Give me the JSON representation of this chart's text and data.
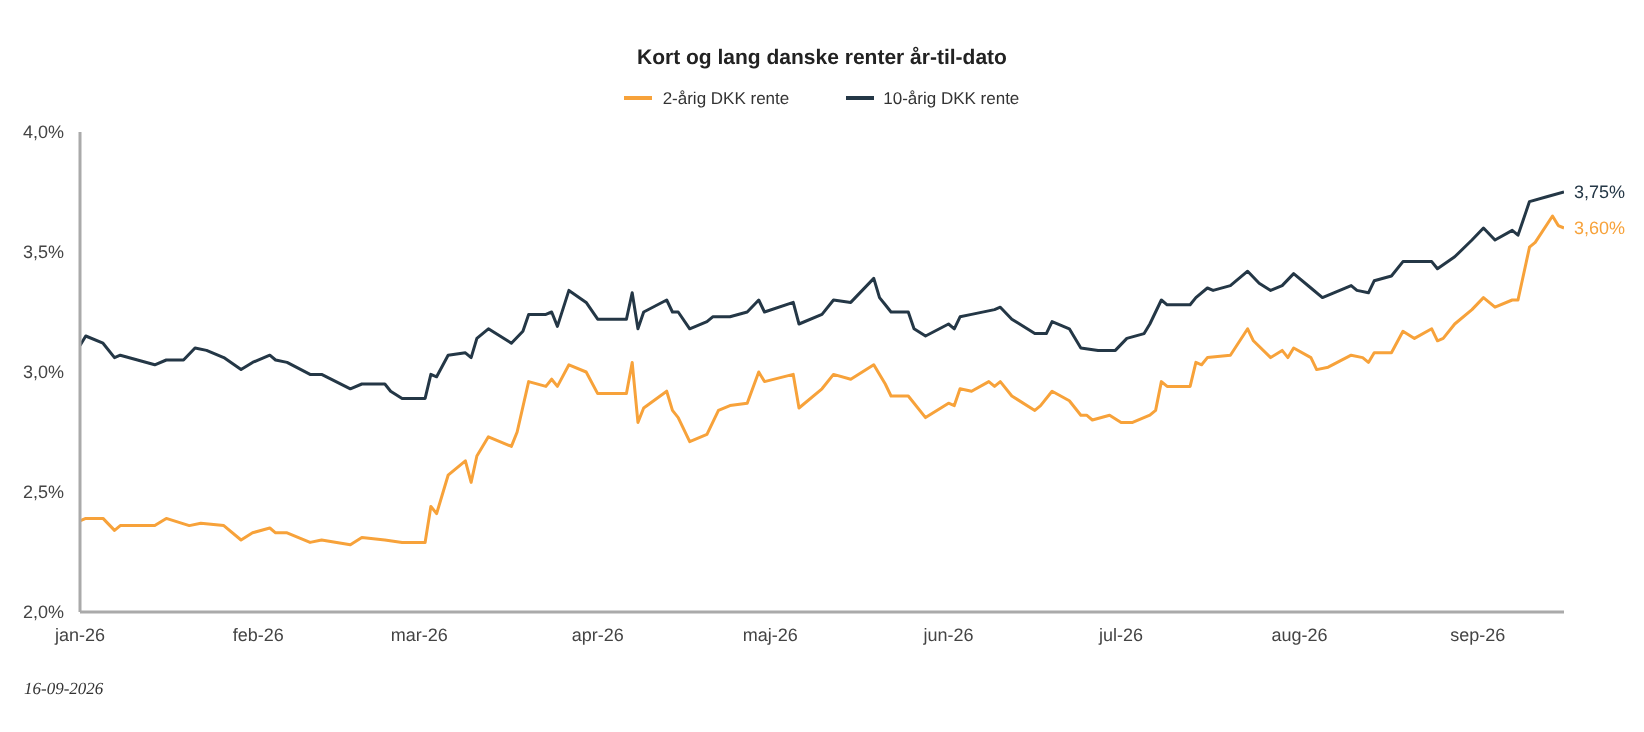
{
  "chart_data": {
    "type": "line",
    "title": "Kort og lang danske renter år-til-dato",
    "annotations": [
      "16-09-2026"
    ],
    "legend": "top",
    "grid": false,
    "marker": "none",
    "line_style": "solid",
    "ylim": [
      2,
      4
    ],
    "yticks": [
      {
        "value": 2,
        "label": "2,0%"
      },
      {
        "value": 2.5,
        "label": "2,5%"
      },
      {
        "value": 3,
        "label": "3,0%"
      },
      {
        "value": 3.5,
        "label": "3,5%"
      },
      {
        "value": 4,
        "label": "4,0%"
      }
    ],
    "xlim": [
      "2026-01-01",
      "2026-09-16"
    ],
    "xticks": [
      {
        "value": "2026-01-01",
        "label": "jan-26"
      },
      {
        "value": "2026-02-01",
        "label": "feb-26"
      },
      {
        "value": "2026-03-01",
        "label": "mar-26"
      },
      {
        "value": "2026-04-01",
        "label": "apr-26"
      },
      {
        "value": "2026-05-01",
        "label": "maj-26"
      },
      {
        "value": "2026-06-01",
        "label": "jun-26"
      },
      {
        "value": "2026-07-01",
        "label": "jul-26"
      },
      {
        "value": "2026-08-01",
        "label": "aug-26"
      },
      {
        "value": "2026-09-01",
        "label": "sep-26"
      }
    ],
    "series": [
      {
        "name": "2-årig DKK rente",
        "color": "#f7a23a",
        "x": [
          "2026-01-01",
          "2026-01-02",
          "2026-01-05",
          "2026-01-07",
          "2026-01-08",
          "2026-01-14",
          "2026-01-16",
          "2026-01-20",
          "2026-01-22",
          "2026-01-26",
          "2026-01-29",
          "2026-01-31",
          "2026-02-03",
          "2026-02-04",
          "2026-02-06",
          "2026-02-10",
          "2026-02-12",
          "2026-02-17",
          "2026-02-19",
          "2026-02-23",
          "2026-02-26",
          "2026-03-02",
          "2026-03-03",
          "2026-03-04",
          "2026-03-06",
          "2026-03-09",
          "2026-03-10",
          "2026-03-11",
          "2026-03-13",
          "2026-03-17",
          "2026-03-18",
          "2026-03-20",
          "2026-03-23",
          "2026-03-24",
          "2026-03-25",
          "2026-03-27",
          "2026-03-30",
          "2026-04-01",
          "2026-04-06",
          "2026-04-07",
          "2026-04-08",
          "2026-04-09",
          "2026-04-13",
          "2026-04-14",
          "2026-04-15",
          "2026-04-17",
          "2026-04-20",
          "2026-04-22",
          "2026-04-24",
          "2026-04-27",
          "2026-04-29",
          "2026-04-30",
          "2026-05-05",
          "2026-05-06",
          "2026-05-10",
          "2026-05-12",
          "2026-05-15",
          "2026-05-19",
          "2026-05-21",
          "2026-05-22",
          "2026-05-25",
          "2026-05-28",
          "2026-06-01",
          "2026-06-02",
          "2026-06-03",
          "2026-06-05",
          "2026-06-08",
          "2026-06-09",
          "2026-06-10",
          "2026-06-12",
          "2026-06-16",
          "2026-06-17",
          "2026-06-19",
          "2026-06-22",
          "2026-06-24",
          "2026-06-25",
          "2026-06-26",
          "2026-06-29",
          "2026-07-01",
          "2026-07-03",
          "2026-07-06",
          "2026-07-07",
          "2026-07-08",
          "2026-07-09",
          "2026-07-13",
          "2026-07-14",
          "2026-07-15",
          "2026-07-16",
          "2026-07-20",
          "2026-07-23",
          "2026-07-24",
          "2026-07-27",
          "2026-07-29",
          "2026-07-30",
          "2026-07-31",
          "2026-08-03",
          "2026-08-04",
          "2026-08-06",
          "2026-08-10",
          "2026-08-12",
          "2026-08-13",
          "2026-08-14",
          "2026-08-17",
          "2026-08-19",
          "2026-08-21",
          "2026-08-24",
          "2026-08-25",
          "2026-08-26",
          "2026-08-28",
          "2026-08-31",
          "2026-09-02",
          "2026-09-04",
          "2026-09-07",
          "2026-09-08",
          "2026-09-10",
          "2026-09-11",
          "2026-09-14",
          "2026-09-15",
          "2026-09-16"
        ],
        "values": [
          2.38,
          2.39,
          2.39,
          2.34,
          2.36,
          2.36,
          2.39,
          2.36,
          2.37,
          2.36,
          2.3,
          2.33,
          2.35,
          2.33,
          2.33,
          2.29,
          2.3,
          2.28,
          2.31,
          2.3,
          2.29,
          2.29,
          2.44,
          2.41,
          2.57,
          2.63,
          2.54,
          2.65,
          2.73,
          2.69,
          2.75,
          2.96,
          2.94,
          2.97,
          2.94,
          3.03,
          3.0,
          2.91,
          2.91,
          3.04,
          2.79,
          2.85,
          2.92,
          2.84,
          2.81,
          2.71,
          2.74,
          2.84,
          2.86,
          2.87,
          3.0,
          2.96,
          2.99,
          2.85,
          2.93,
          2.99,
          2.97,
          3.03,
          2.95,
          2.9,
          2.9,
          2.81,
          2.87,
          2.86,
          2.93,
          2.92,
          2.96,
          2.94,
          2.96,
          2.9,
          2.84,
          2.86,
          2.92,
          2.88,
          2.82,
          2.82,
          2.8,
          2.82,
          2.79,
          2.79,
          2.82,
          2.84,
          2.96,
          2.94,
          2.94,
          3.04,
          3.03,
          3.06,
          3.07,
          3.18,
          3.13,
          3.06,
          3.09,
          3.06,
          3.1,
          3.06,
          3.01,
          3.02,
          3.07,
          3.06,
          3.04,
          3.08,
          3.08,
          3.17,
          3.14,
          3.18,
          3.13,
          3.14,
          3.2,
          3.26,
          3.31,
          3.27,
          3.3,
          3.3,
          3.52,
          3.54,
          3.65,
          3.61,
          3.6
        ],
        "value_labels": [
          null,
          null,
          null,
          null,
          null,
          null,
          null,
          null,
          null,
          null,
          null,
          null,
          null,
          null,
          null,
          null,
          null,
          null,
          null,
          null,
          null,
          null,
          null,
          null,
          null,
          null,
          null,
          null,
          null,
          null,
          null,
          null,
          null,
          null,
          null,
          null,
          null,
          null,
          null,
          null,
          null,
          null,
          null,
          null,
          null,
          null,
          null,
          null,
          null,
          null,
          null,
          null,
          null,
          null,
          null,
          null,
          null,
          null,
          null,
          null,
          null,
          null,
          null,
          null,
          null,
          null,
          null,
          null,
          null,
          null,
          null,
          null,
          null,
          null,
          null,
          null,
          null,
          null,
          null,
          null,
          null,
          null,
          null,
          null,
          null,
          null,
          null,
          null,
          null,
          null,
          null,
          null,
          null,
          null,
          null,
          null,
          null,
          null,
          null,
          null,
          null,
          null,
          null,
          null,
          null,
          null,
          null,
          null,
          null,
          null,
          null,
          null,
          null,
          null,
          null,
          null,
          null,
          null,
          "3,60%"
        ]
      },
      {
        "name": "10-årig DKK rente",
        "color": "#243746",
        "x": [
          "2026-01-01",
          "2026-01-02",
          "2026-01-05",
          "2026-01-07",
          "2026-01-08",
          "2026-01-14",
          "2026-01-16",
          "2026-01-19",
          "2026-01-21",
          "2026-01-23",
          "2026-01-26",
          "2026-01-29",
          "2026-01-31",
          "2026-02-03",
          "2026-02-04",
          "2026-02-06",
          "2026-02-10",
          "2026-02-12",
          "2026-02-17",
          "2026-02-19",
          "2026-02-23",
          "2026-02-24",
          "2026-02-26",
          "2026-03-02",
          "2026-03-03",
          "2026-03-04",
          "2026-03-06",
          "2026-03-09",
          "2026-03-10",
          "2026-03-11",
          "2026-03-13",
          "2026-03-17",
          "2026-03-19",
          "2026-03-20",
          "2026-03-23",
          "2026-03-24",
          "2026-03-25",
          "2026-03-27",
          "2026-03-30",
          "2026-04-01",
          "2026-04-06",
          "2026-04-07",
          "2026-04-08",
          "2026-04-09",
          "2026-04-13",
          "2026-04-14",
          "2026-04-15",
          "2026-04-17",
          "2026-04-20",
          "2026-04-21",
          "2026-04-24",
          "2026-04-27",
          "2026-04-29",
          "2026-04-30",
          "2026-05-05",
          "2026-05-06",
          "2026-05-10",
          "2026-05-12",
          "2026-05-15",
          "2026-05-19",
          "2026-05-20",
          "2026-05-21",
          "2026-05-22",
          "2026-05-25",
          "2026-05-26",
          "2026-05-28",
          "2026-06-01",
          "2026-06-02",
          "2026-06-03",
          "2026-06-05",
          "2026-06-09",
          "2026-06-10",
          "2026-06-12",
          "2026-06-16",
          "2026-06-18",
          "2026-06-19",
          "2026-06-22",
          "2026-06-24",
          "2026-06-27",
          "2026-06-30",
          "2026-07-02",
          "2026-07-05",
          "2026-07-06",
          "2026-07-08",
          "2026-07-09",
          "2026-07-13",
          "2026-07-14",
          "2026-07-16",
          "2026-07-17",
          "2026-07-20",
          "2026-07-23",
          "2026-07-25",
          "2026-07-27",
          "2026-07-29",
          "2026-07-31",
          "2026-08-03",
          "2026-08-05",
          "2026-08-10",
          "2026-08-11",
          "2026-08-13",
          "2026-08-14",
          "2026-08-17",
          "2026-08-19",
          "2026-08-24",
          "2026-08-25",
          "2026-08-28",
          "2026-08-31",
          "2026-09-02",
          "2026-09-04",
          "2026-09-07",
          "2026-09-08",
          "2026-09-10",
          "2026-09-13",
          "2026-09-16"
        ],
        "values": [
          3.11,
          3.15,
          3.12,
          3.06,
          3.07,
          3.03,
          3.05,
          3.05,
          3.1,
          3.09,
          3.06,
          3.01,
          3.04,
          3.07,
          3.05,
          3.04,
          2.99,
          2.99,
          2.93,
          2.95,
          2.95,
          2.92,
          2.89,
          2.89,
          2.99,
          2.98,
          3.07,
          3.08,
          3.06,
          3.14,
          3.18,
          3.12,
          3.17,
          3.24,
          3.24,
          3.25,
          3.19,
          3.34,
          3.29,
          3.22,
          3.22,
          3.33,
          3.18,
          3.25,
          3.3,
          3.25,
          3.25,
          3.18,
          3.21,
          3.23,
          3.23,
          3.25,
          3.3,
          3.25,
          3.29,
          3.2,
          3.24,
          3.3,
          3.29,
          3.39,
          3.31,
          3.28,
          3.25,
          3.25,
          3.18,
          3.15,
          3.2,
          3.18,
          3.23,
          3.24,
          3.26,
          3.27,
          3.22,
          3.16,
          3.16,
          3.21,
          3.18,
          3.1,
          3.09,
          3.09,
          3.14,
          3.16,
          3.2,
          3.3,
          3.28,
          3.28,
          3.31,
          3.35,
          3.34,
          3.36,
          3.42,
          3.37,
          3.34,
          3.36,
          3.41,
          3.35,
          3.31,
          3.36,
          3.34,
          3.33,
          3.38,
          3.4,
          3.46,
          3.46,
          3.43,
          3.48,
          3.55,
          3.6,
          3.55,
          3.59,
          3.57,
          3.71,
          3.73,
          3.75
        ],
        "value_labels": [
          null,
          null,
          null,
          null,
          null,
          null,
          null,
          null,
          null,
          null,
          null,
          null,
          null,
          null,
          null,
          null,
          null,
          null,
          null,
          null,
          null,
          null,
          null,
          null,
          null,
          null,
          null,
          null,
          null,
          null,
          null,
          null,
          null,
          null,
          null,
          null,
          null,
          null,
          null,
          null,
          null,
          null,
          null,
          null,
          null,
          null,
          null,
          null,
          null,
          null,
          null,
          null,
          null,
          null,
          null,
          null,
          null,
          null,
          null,
          null,
          null,
          null,
          null,
          null,
          null,
          null,
          null,
          null,
          null,
          null,
          null,
          null,
          null,
          null,
          null,
          null,
          null,
          null,
          null,
          null,
          null,
          null,
          null,
          null,
          null,
          null,
          null,
          null,
          null,
          null,
          null,
          null,
          null,
          null,
          null,
          null,
          null,
          null,
          null,
          null,
          null,
          null,
          null,
          null,
          null,
          null,
          null,
          null,
          null,
          null,
          null,
          null,
          null,
          "3,75%"
        ]
      }
    ]
  }
}
